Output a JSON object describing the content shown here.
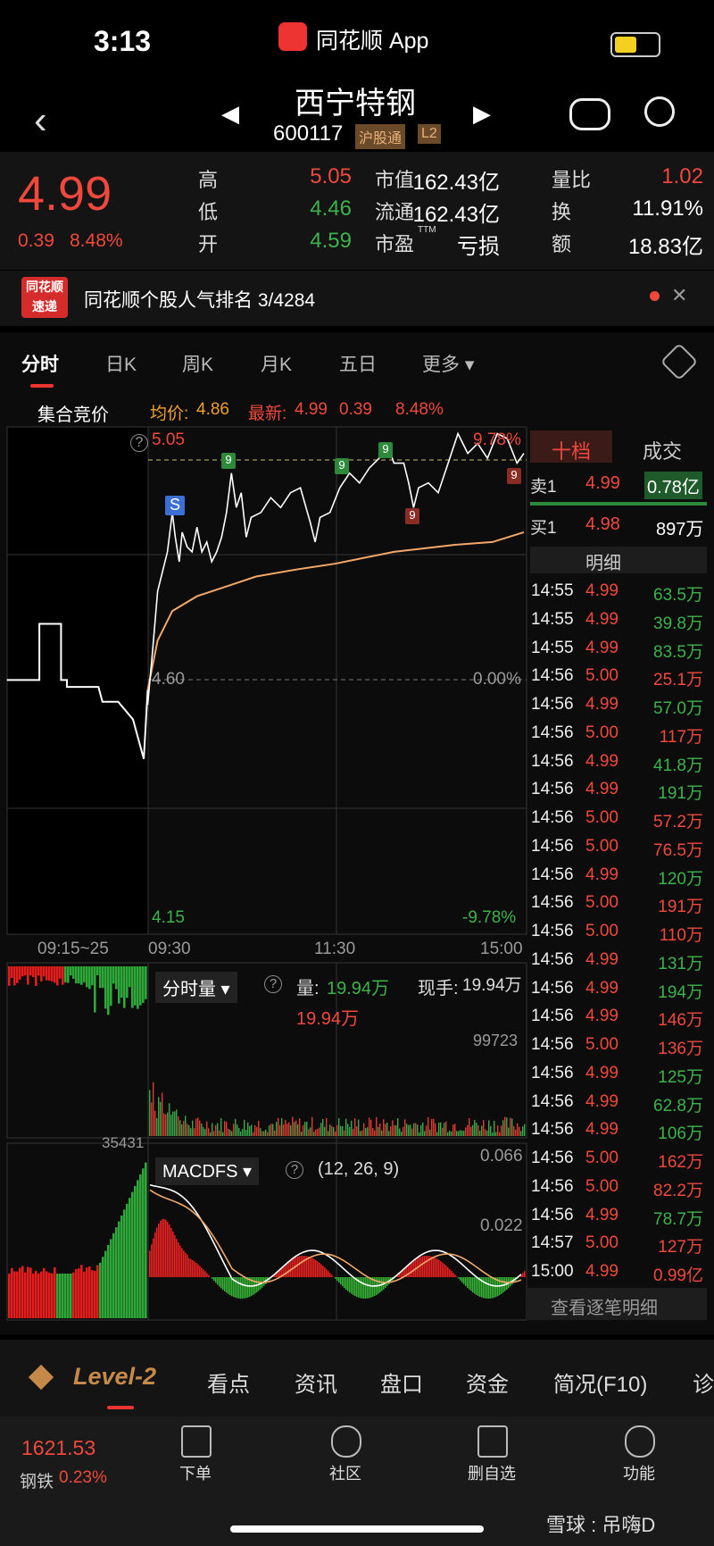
{
  "status": {
    "time": "3:13",
    "app": "同花顺 App"
  },
  "header": {
    "title": "西宁特钢",
    "code": "600117",
    "tags": [
      "沪股通",
      "L2"
    ]
  },
  "quote": {
    "price": "4.99",
    "change": "0.39",
    "change_pct": "8.48%",
    "stats": [
      [
        {
          "label": "高",
          "value": "5.05",
          "color": "#f0483c"
        },
        {
          "label": "低",
          "value": "4.46",
          "color": "#3cb34a"
        },
        {
          "label": "开",
          "value": "4.59",
          "color": "#3cb34a"
        }
      ],
      [
        {
          "label": "市值",
          "value": "162.43亿",
          "color": "#ffffff"
        },
        {
          "label": "流通",
          "value": "162.43亿",
          "color": "#ffffff"
        },
        {
          "label": "市盈",
          "sup": "TTM",
          "value": "亏损",
          "color": "#ffffff"
        }
      ],
      [
        {
          "label": "量比",
          "value": "1.02",
          "color": "#f0483c"
        },
        {
          "label": "换",
          "value": "11.91%",
          "color": "#ffffff"
        },
        {
          "label": "额",
          "value": "18.83亿",
          "color": "#ffffff"
        }
      ]
    ]
  },
  "banner": {
    "logo": [
      "同花顺",
      "速递"
    ],
    "text": "同花顺个股人气排名 3/4284"
  },
  "tabs": [
    "分时",
    "日K",
    "周K",
    "月K",
    "五日",
    "更多"
  ],
  "chart": {
    "phase": "集合竞价",
    "avg_label": "均价:",
    "avg": "4.86",
    "last_label": "最新:",
    "last": "4.99",
    "last_change": "0.39",
    "last_pct": "8.48%",
    "high": "5.05",
    "high_pct": "9.78%",
    "base": "4.60",
    "base_pct": "0.00%",
    "low": "4.15",
    "low_pct": "-9.78%",
    "times": [
      "09:15~25",
      "09:30",
      "11:30",
      "15:00"
    ],
    "markers": [
      "S",
      "9",
      "9",
      "9",
      "9",
      "9"
    ]
  },
  "volume": {
    "label": "分时量",
    "vol_label": "量:",
    "vol": "19.94万",
    "hand_label": "现手:",
    "hand": "19.94万",
    "vol2": "19.94万",
    "level": "99723",
    "left_level": "35431"
  },
  "macd": {
    "label": "MACDFS",
    "params": "(12, 26, 9)",
    "level1": "0.066",
    "level2": "0.022"
  },
  "orderbook": {
    "tabs": [
      "十档",
      "成交"
    ],
    "sell": {
      "label": "卖1",
      "price": "4.99",
      "vol": "0.78亿"
    },
    "buy": {
      "label": "买1",
      "price": "4.98",
      "vol": "897万"
    },
    "detail": "明细",
    "trades": [
      {
        "time": "14:55",
        "price": "4.99",
        "volume": "63.5万",
        "color": "#3cb34a"
      },
      {
        "time": "14:55",
        "price": "4.99",
        "volume": "39.8万",
        "color": "#3cb34a"
      },
      {
        "time": "14:55",
        "price": "4.99",
        "volume": "83.5万",
        "color": "#3cb34a"
      },
      {
        "time": "14:56",
        "price": "5.00",
        "volume": "25.1万",
        "color": "#f0483c"
      },
      {
        "time": "14:56",
        "price": "4.99",
        "volume": "57.0万",
        "color": "#3cb34a"
      },
      {
        "time": "14:56",
        "price": "5.00",
        "volume": "117万",
        "color": "#f0483c"
      },
      {
        "time": "14:56",
        "price": "4.99",
        "volume": "41.8万",
        "color": "#3cb34a"
      },
      {
        "time": "14:56",
        "price": "4.99",
        "volume": "191万",
        "color": "#3cb34a"
      },
      {
        "time": "14:56",
        "price": "5.00",
        "volume": "57.2万",
        "color": "#f0483c"
      },
      {
        "time": "14:56",
        "price": "5.00",
        "volume": "76.5万",
        "color": "#f0483c"
      },
      {
        "time": "14:56",
        "price": "4.99",
        "volume": "120万",
        "color": "#3cb34a"
      },
      {
        "time": "14:56",
        "price": "5.00",
        "volume": "191万",
        "color": "#f0483c"
      },
      {
        "time": "14:56",
        "price": "5.00",
        "volume": "110万",
        "color": "#f0483c"
      },
      {
        "time": "14:56",
        "price": "4.99",
        "volume": "131万",
        "color": "#3cb34a"
      },
      {
        "time": "14:56",
        "price": "4.99",
        "volume": "194万",
        "color": "#3cb34a"
      },
      {
        "time": "14:56",
        "price": "4.99",
        "volume": "146万",
        "color": "#f0483c"
      },
      {
        "time": "14:56",
        "price": "5.00",
        "volume": "136万",
        "color": "#f0483c"
      },
      {
        "time": "14:56",
        "price": "4.99",
        "volume": "125万",
        "color": "#3cb34a"
      },
      {
        "time": "14:56",
        "price": "4.99",
        "volume": "62.8万",
        "color": "#3cb34a"
      },
      {
        "time": "14:56",
        "price": "4.99",
        "volume": "106万",
        "color": "#3cb34a"
      },
      {
        "time": "14:56",
        "price": "5.00",
        "volume": "162万",
        "color": "#f0483c"
      },
      {
        "time": "14:56",
        "price": "5.00",
        "volume": "82.2万",
        "color": "#f0483c"
      },
      {
        "time": "14:56",
        "price": "4.99",
        "volume": "78.7万",
        "color": "#3cb34a"
      },
      {
        "time": "14:57",
        "price": "5.00",
        "volume": "127万",
        "color": "#f0483c"
      },
      {
        "time": "15:00",
        "price": "4.99",
        "volume": "0.99亿",
        "color": "#f0483c"
      }
    ],
    "more": "查看逐笔明细"
  },
  "bottom_tabs": [
    "Level-2",
    "看点",
    "资讯",
    "盘口",
    "资金",
    "简况(F10)",
    "诊"
  ],
  "footer": {
    "index": "1621.53",
    "index_name": "钢铁",
    "index_pct": "0.23%",
    "nav": [
      "下单",
      "社区",
      "删自选",
      "功能"
    ],
    "watermark": "雪球 : 吊嗨D"
  }
}
